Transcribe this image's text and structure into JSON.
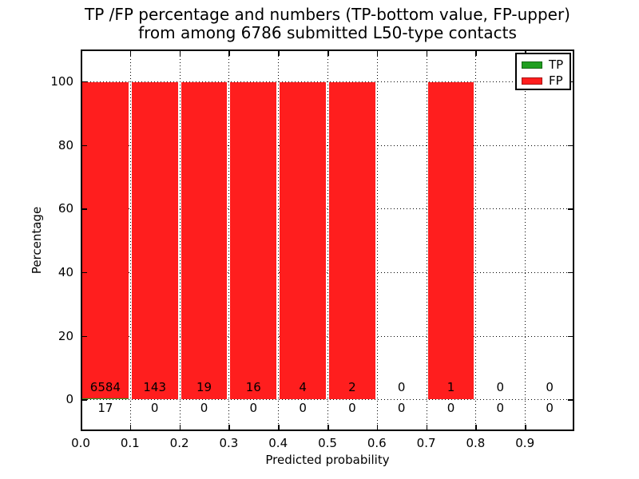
{
  "figure": {
    "title_lines": [
      "TP /FP percentage and numbers (TP-bottom value, FP-upper)",
      "from among 6786 submitted L50-type contacts"
    ]
  },
  "chart_data": {
    "type": "bar",
    "stacked": true,
    "title": "TP /FP percentage and numbers (TP-bottom value, FP-upper) from among 6786 submitted L50-type contacts",
    "xlabel": "Predicted probability",
    "ylabel": "Percentage",
    "xlim": [
      0.0,
      1.0
    ],
    "ylim": [
      -10,
      110
    ],
    "grid": "dotted",
    "x_tick_values": [
      0.0,
      0.1,
      0.2,
      0.3,
      0.4,
      0.5,
      0.6,
      0.7,
      0.8,
      0.9
    ],
    "x_tick_labels": [
      "0.0",
      "0.1",
      "0.2",
      "0.3",
      "0.4",
      "0.5",
      "0.6",
      "0.7",
      "0.8",
      "0.9"
    ],
    "y_ticks": [
      0,
      20,
      40,
      60,
      80,
      100
    ],
    "categories": [
      "0.0-0.1",
      "0.1-0.2",
      "0.2-0.3",
      "0.3-0.4",
      "0.4-0.5",
      "0.5-0.6",
      "0.6-0.7",
      "0.7-0.8",
      "0.8-0.9",
      "0.9-1.0"
    ],
    "series": [
      {
        "name": "TP",
        "color": "#1f9e1f",
        "counts": [
          17,
          0,
          0,
          0,
          0,
          0,
          0,
          0,
          0,
          0
        ],
        "pct": [
          0.26,
          0,
          0,
          0,
          0,
          0,
          0,
          0,
          0,
          0
        ]
      },
      {
        "name": "FP",
        "color": "#ff1e1e",
        "counts": [
          6584,
          143,
          19,
          16,
          4,
          2,
          0,
          1,
          0,
          0
        ],
        "pct": [
          99.74,
          100,
          100,
          100,
          100,
          100,
          0,
          100,
          0,
          0
        ]
      }
    ],
    "legend": {
      "position": "upper right",
      "entries": [
        "TP",
        "FP"
      ]
    }
  }
}
